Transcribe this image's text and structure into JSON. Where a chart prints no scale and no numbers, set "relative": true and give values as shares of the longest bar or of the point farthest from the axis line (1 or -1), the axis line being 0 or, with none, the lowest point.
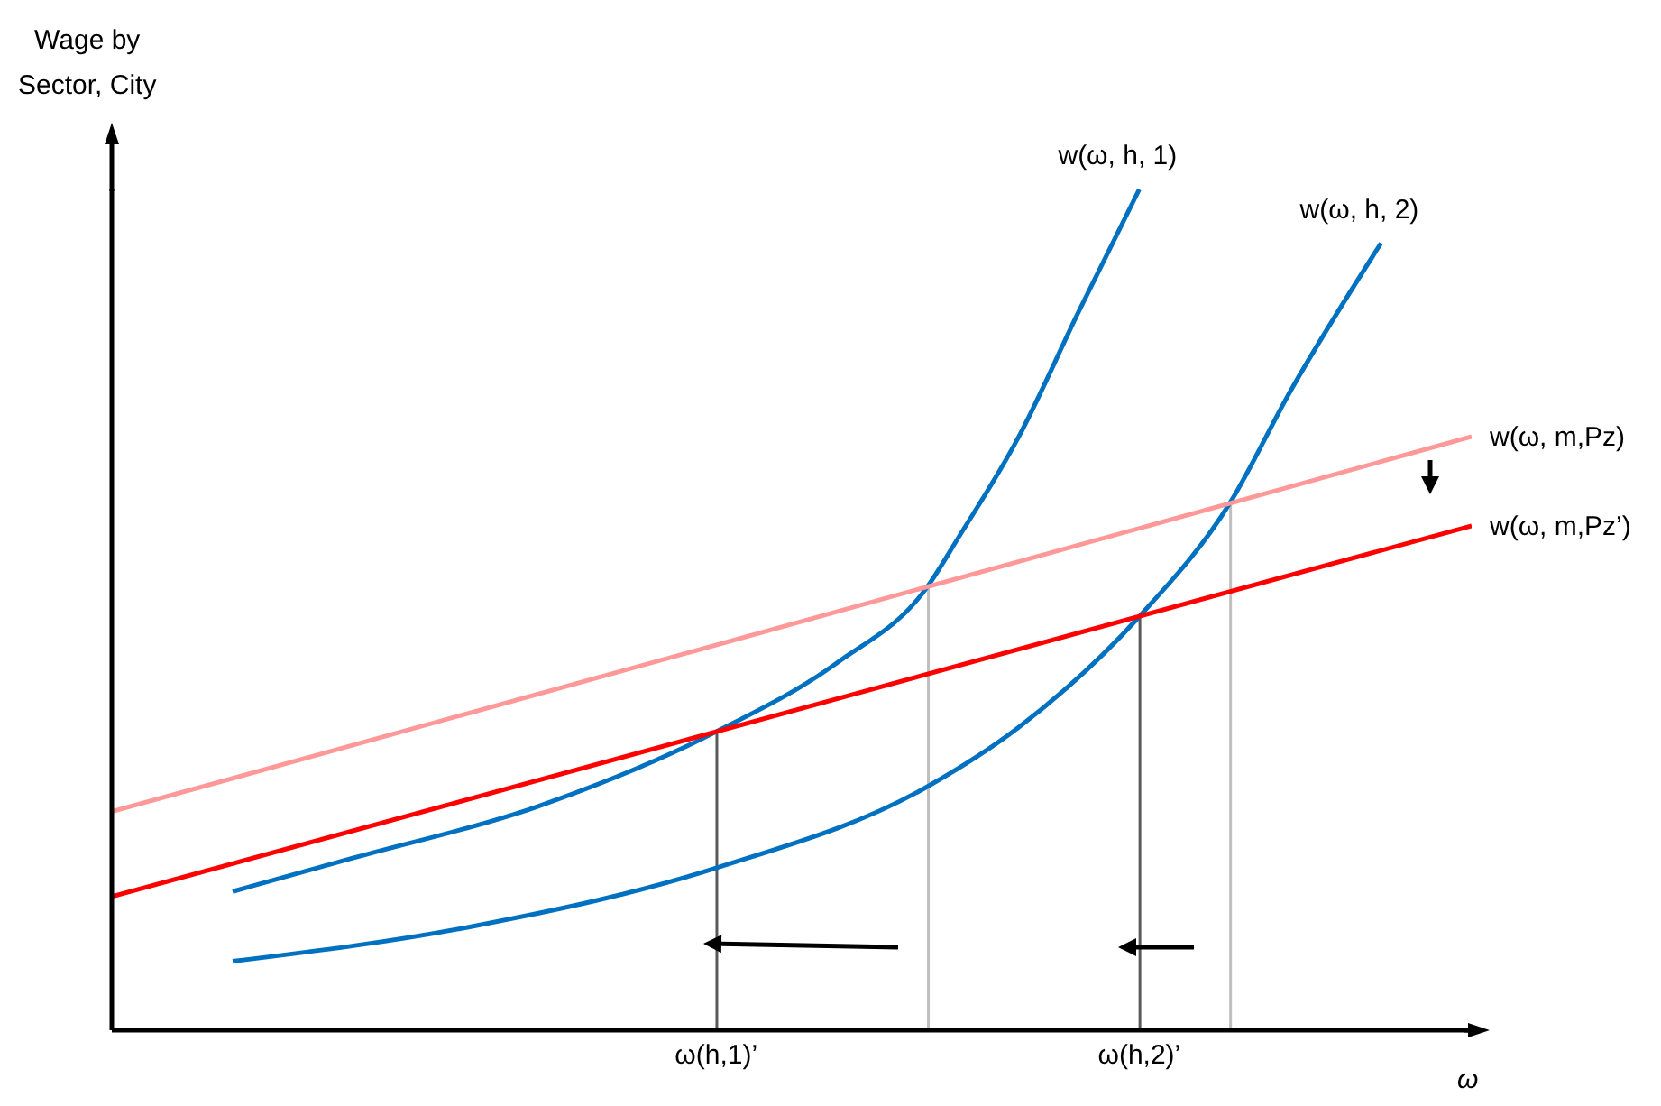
{
  "chart_data": {
    "type": "line",
    "relative": true,
    "xlabel": "ω",
    "ylabel": "Wage by\nSector, City",
    "categories": [
      null,
      null,
      null,
      null,
      null,
      null,
      null,
      null,
      null,
      null,
      null,
      null,
      null,
      null,
      null,
      null,
      null,
      null,
      null,
      null,
      "ω(h,1)’",
      null,
      null,
      null,
      null,
      null,
      null,
      null,
      null,
      null,
      null,
      null,
      null,
      null,
      "ω(h,2)’",
      null,
      null,
      null,
      null,
      null,
      null,
      null,
      null,
      null,
      null,
      null
    ],
    "series": [
      {
        "name": "w(ω, h, 1)",
        "color": "#0070c0",
        "values": [
          null,
          null,
          null,
          null,
          0.165,
          null,
          null,
          null,
          0.205,
          null,
          null,
          null,
          null,
          null,
          0.265,
          null,
          null,
          null,
          null,
          null,
          0.355,
          null,
          null,
          null,
          0.437,
          null,
          null,
          0.528,
          0.585,
          null,
          0.705,
          null,
          0.855,
          null,
          1,
          null,
          null,
          null,
          null,
          null,
          null,
          null,
          null,
          null,
          null,
          null
        ]
      },
      {
        "name": "w(ω, h, 2)",
        "color": "#0070c0",
        "values": [
          null,
          null,
          null,
          null,
          0.082,
          null,
          null,
          null,
          null,
          null,
          null,
          null,
          0.124,
          null,
          null,
          null,
          null,
          null,
          null,
          null,
          0.193,
          null,
          null,
          null,
          null,
          null,
          null,
          0.29,
          null,
          null,
          0.36,
          null,
          null,
          null,
          0.492,
          null,
          null,
          0.627,
          null,
          0.76,
          null,
          null,
          0.936,
          null,
          null,
          null
        ]
      },
      {
        "name": "w(ω, m,Pz)",
        "color": "#ff9999",
        "values": [
          0.26,
          null,
          null,
          null,
          null,
          null,
          null,
          null,
          null,
          null,
          null,
          null,
          null,
          null,
          null,
          null,
          null,
          null,
          null,
          null,
          null,
          null,
          null,
          null,
          null,
          null,
          null,
          null,
          null,
          null,
          null,
          null,
          null,
          null,
          null,
          null,
          null,
          null,
          null,
          null,
          null,
          null,
          null,
          null,
          null,
          0.706
        ]
      },
      {
        "name": "w(ω, m,Pz’)",
        "color": "#ff0000",
        "values": [
          0.159,
          null,
          null,
          null,
          null,
          null,
          null,
          null,
          null,
          null,
          null,
          null,
          null,
          null,
          null,
          null,
          null,
          null,
          null,
          null,
          null,
          null,
          null,
          null,
          null,
          null,
          null,
          null,
          null,
          null,
          null,
          null,
          null,
          null,
          null,
          null,
          null,
          null,
          null,
          null,
          null,
          null,
          null,
          null,
          null,
          0.6
        ]
      },
      {
        "type": "bar",
        "colors": [
          null,
          null,
          null,
          null,
          null,
          null,
          null,
          null,
          null,
          null,
          null,
          null,
          null,
          null,
          null,
          null,
          null,
          null,
          null,
          null,
          "#595959",
          null,
          null,
          null,
          null,
          null,
          null,
          "#bfbfbf",
          null,
          null,
          null,
          null,
          null,
          null,
          "#595959",
          null,
          null,
          "#bfbfbf",
          null,
          null,
          null,
          null,
          null,
          null,
          null,
          null
        ],
        "values": [
          null,
          null,
          null,
          null,
          null,
          null,
          null,
          null,
          null,
          null,
          null,
          null,
          null,
          null,
          null,
          null,
          null,
          null,
          null,
          null,
          0.355,
          null,
          null,
          null,
          null,
          null,
          null,
          0.528,
          null,
          null,
          null,
          null,
          null,
          null,
          0.492,
          null,
          null,
          0.627,
          null,
          null,
          null,
          null,
          null,
          null,
          null,
          null
        ]
      }
    ]
  }
}
